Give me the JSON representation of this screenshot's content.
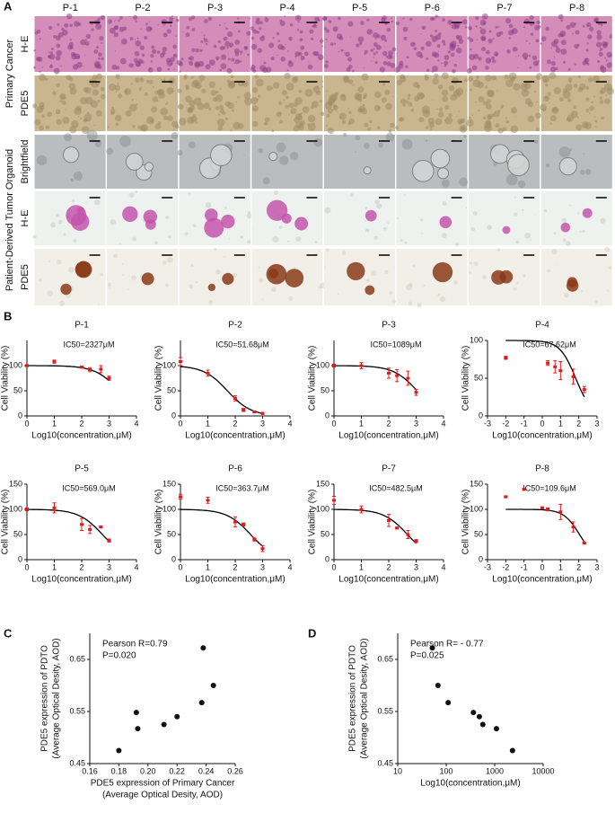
{
  "panels": [
    "A",
    "B",
    "C",
    "D"
  ],
  "panel_a": {
    "columns": [
      "P-1",
      "P-2",
      "P-3",
      "P-4",
      "P-5",
      "P-6",
      "P-7",
      "P-8"
    ],
    "groups": [
      {
        "label": "Primary Cancer",
        "rows": [
          "H-E",
          "PDE5"
        ]
      },
      {
        "label": "Patient-Derived Tumor Organoid",
        "rows": [
          "Brightfield",
          "H-E",
          "PDE5"
        ]
      }
    ]
  },
  "chart_data": [
    {
      "type": "curve",
      "title": "P-1",
      "annotation": "IC50=2327μM",
      "ic50": 2327,
      "color": "#e31a1c",
      "x": [
        0,
        1,
        2,
        2.3,
        2.7,
        3
      ],
      "values": [
        100,
        108,
        97,
        92,
        93,
        75
      ],
      "errors": [
        2,
        3,
        2,
        4,
        7,
        4
      ],
      "xlim": [
        0,
        4
      ],
      "xticks": [
        0,
        1,
        2,
        3,
        4
      ],
      "ylim": [
        0,
        150
      ],
      "yticks": [
        0,
        50,
        100
      ],
      "xlabel": "Log10(concentration,μM)",
      "ylabel": "Cell Viability (%)"
    },
    {
      "type": "curve",
      "title": "P-2",
      "annotation": "IC50=51.68μM",
      "ic50": 51.68,
      "color": "#e31a1c",
      "x": [
        0,
        1,
        2,
        2.3,
        2.7,
        3
      ],
      "values": [
        108,
        85,
        35,
        12,
        8,
        5
      ],
      "errors": [
        8,
        6,
        5,
        3,
        2,
        2
      ],
      "xlim": [
        0,
        4
      ],
      "xticks": [
        0,
        1,
        2,
        3,
        4
      ],
      "ylim": [
        0,
        150
      ],
      "yticks": [
        0,
        50,
        100
      ],
      "xlabel": "Log10(concentration,μM)",
      "ylabel": "Cell Viability (%)"
    },
    {
      "type": "curve",
      "title": "P-3",
      "annotation": "IC50=1089μM",
      "ic50": 1089,
      "color": "#e31a1c",
      "x": [
        0,
        1,
        2,
        2.3,
        2.7,
        3
      ],
      "values": [
        100,
        100,
        85,
        80,
        75,
        47
      ],
      "errors": [
        3,
        6,
        10,
        12,
        14,
        6
      ],
      "xlim": [
        0,
        4
      ],
      "xticks": [
        0,
        1,
        2,
        3,
        4
      ],
      "ylim": [
        0,
        150
      ],
      "yticks": [
        0,
        50,
        100
      ],
      "xlabel": "Log10(concentration,μM)",
      "ylabel": "Cell Viability (%)"
    },
    {
      "type": "curve",
      "title": "P-4",
      "annotation": "IC50=67.62μM",
      "ic50": 67.62,
      "color": "#e31a1c",
      "x": [
        -2,
        0.3,
        0.7,
        1,
        1.7,
        2.3
      ],
      "values": [
        77,
        70,
        65,
        60,
        52,
        35
      ],
      "errors": [
        2,
        3,
        8,
        12,
        10,
        4
      ],
      "xlim": [
        -3,
        3
      ],
      "xticks": [
        -3,
        -2,
        -1,
        0,
        1,
        2,
        3
      ],
      "ylim": [
        0,
        100
      ],
      "yticks": [
        0,
        50,
        100
      ],
      "xlabel": "Log10(concentration,μM)",
      "ylabel": "Cell Viability (%)"
    },
    {
      "type": "curve",
      "title": "P-5",
      "annotation": "IC50=569.0μM",
      "ic50": 569.0,
      "color": "#e31a1c",
      "x": [
        0,
        1,
        2,
        2.3,
        2.7,
        3
      ],
      "values": [
        100,
        103,
        70,
        60,
        65,
        38
      ],
      "errors": [
        3,
        10,
        12,
        8,
        2,
        3
      ],
      "xlim": [
        0,
        4
      ],
      "xticks": [
        0,
        1,
        2,
        3,
        4
      ],
      "ylim": [
        0,
        150
      ],
      "yticks": [
        0,
        50,
        100,
        150
      ],
      "xlabel": "Log10(concentration,μM)",
      "ylabel": "Cell Viability (%)"
    },
    {
      "type": "curve",
      "title": "P-6",
      "annotation": "IC50=363.7μM",
      "ic50": 363.7,
      "color": "#e31a1c",
      "x": [
        0,
        1,
        2,
        2.3,
        2.7,
        3
      ],
      "values": [
        125,
        118,
        75,
        70,
        40,
        22
      ],
      "errors": [
        5,
        6,
        10,
        3,
        3,
        6
      ],
      "xlim": [
        0,
        4
      ],
      "xticks": [
        0,
        1,
        2,
        3,
        4
      ],
      "ylim": [
        0,
        150
      ],
      "yticks": [
        0,
        50,
        100,
        150
      ],
      "xlabel": "Log10(concentration,μM)",
      "ylabel": "Cell Viability (%)"
    },
    {
      "type": "curve",
      "title": "P-7",
      "annotation": "IC50=482.5μM",
      "ic50": 482.5,
      "color": "#e31a1c",
      "x": [
        0,
        1,
        2,
        2.3,
        2.7,
        3
      ],
      "values": [
        118,
        100,
        78,
        63,
        50,
        37
      ],
      "errors": [
        8,
        7,
        12,
        2,
        8,
        3
      ],
      "xlim": [
        0,
        4
      ],
      "xticks": [
        0,
        1,
        2,
        3,
        4
      ],
      "ylim": [
        0,
        150
      ],
      "yticks": [
        0,
        50,
        100,
        150
      ],
      "xlabel": "Log10(concentration,μM)",
      "ylabel": "Cell Viability (%)"
    },
    {
      "type": "curve",
      "title": "P-8",
      "annotation": "IC50=109.6μM",
      "ic50": 109.6,
      "color": "#e31a1c",
      "x": [
        -2,
        -1,
        0,
        0.3,
        1,
        1.7,
        2.3
      ],
      "values": [
        125,
        140,
        103,
        100,
        95,
        65,
        33
      ],
      "errors": [
        2,
        2,
        2,
        3,
        15,
        10,
        2
      ],
      "xlim": [
        -3,
        3
      ],
      "xticks": [
        -3,
        -2,
        -1,
        0,
        1,
        2,
        3
      ],
      "ylim": [
        0,
        150
      ],
      "yticks": [
        0,
        50,
        100,
        150
      ],
      "xlabel": "Log10(concentration,μM)",
      "ylabel": "Cell Viability (%)"
    },
    {
      "type": "scatter",
      "color": "#111111",
      "annotations": [
        "Pearson R=0.79",
        "P=0.020"
      ],
      "x": [
        0.18,
        0.192,
        0.193,
        0.211,
        0.22,
        0.237,
        0.238,
        0.245
      ],
      "values": [
        0.475,
        0.548,
        0.517,
        0.525,
        0.54,
        0.567,
        0.672,
        0.6
      ],
      "xlim": [
        0.16,
        0.26
      ],
      "xticks": [
        0.16,
        0.18,
        {
          "value": 0.2,
          "label": "0.20"
        },
        0.22,
        0.24,
        0.26
      ],
      "ylim": [
        0.45,
        0.7
      ],
      "yticks": [
        0.45,
        0.55,
        0.65
      ],
      "xlabel": [
        "PDE5 expression of Primary Cancer",
        "(Average Optical Desity, AOD)"
      ],
      "ylabel": [
        "PDE5 expression of PDTO",
        "(Average Optical Desity, AOD)"
      ]
    },
    {
      "type": "scatter",
      "color": "#111111",
      "annotations": [
        "Pearson R= - 0.77",
        "P=0.025"
      ],
      "xscale": "log",
      "x": [
        51.68,
        67.62,
        109.6,
        363.7,
        482.5,
        569.0,
        1089,
        2327
      ],
      "values": [
        0.672,
        0.6,
        0.567,
        0.548,
        0.54,
        0.525,
        0.517,
        0.475
      ],
      "xlim": [
        10,
        10000
      ],
      "xticks": [
        10,
        100,
        1000,
        10000
      ],
      "ylim": [
        0.45,
        0.7
      ],
      "yticks": [
        0.45,
        0.55,
        0.65
      ],
      "xlabel": [
        "Log10(concentration,μM)"
      ],
      "ylabel": [
        "PDE5 expression of PDTO",
        "(Average Optical Desity, AOD)"
      ]
    }
  ]
}
